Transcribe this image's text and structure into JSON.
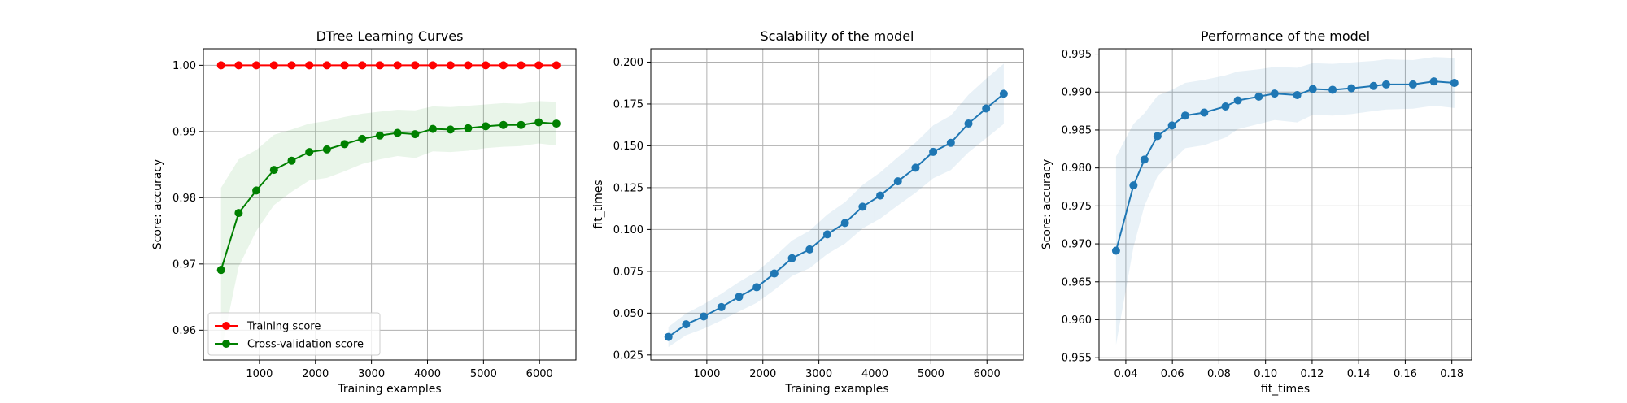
{
  "colors": {
    "training": "#ff0000",
    "cv": "#008000",
    "cv_band": "#2ca02c",
    "tab_blue": "#1f77b4",
    "grid": "#b0b0b0"
  },
  "chart_data": [
    {
      "type": "line",
      "title": "DTree Learning Curves",
      "xlabel": "Training examples",
      "ylabel": "Score: accuracy",
      "xlim": [
        0,
        6650
      ],
      "ylim": [
        0.9555,
        1.0025
      ],
      "xticks": [
        1000,
        2000,
        3000,
        4000,
        5000,
        6000
      ],
      "yticks": [
        0.96,
        0.97,
        0.98,
        0.99,
        1.0
      ],
      "ytick_labels": [
        "0.96",
        "0.97",
        "0.98",
        "0.99",
        "1.00"
      ],
      "grid": true,
      "legend": "lower left",
      "x": [
        315,
        630,
        945,
        1260,
        1575,
        1890,
        2205,
        2520,
        2835,
        3150,
        3465,
        3780,
        4095,
        4410,
        4725,
        5040,
        5355,
        5670,
        5985,
        6300
      ],
      "series": [
        {
          "name": "Training score",
          "color": "#ff0000",
          "values": [
            1.0,
            1.0,
            1.0,
            1.0,
            1.0,
            1.0,
            1.0,
            1.0,
            1.0,
            1.0,
            1.0,
            1.0,
            1.0,
            1.0,
            1.0,
            1.0,
            1.0,
            1.0,
            1.0,
            1.0
          ]
        },
        {
          "name": "Cross-validation score",
          "color": "#008000",
          "values": [
            0.9691,
            0.9777,
            0.9811,
            0.9842,
            0.9856,
            0.9869,
            0.9873,
            0.9881,
            0.9889,
            0.9894,
            0.9898,
            0.9896,
            0.9904,
            0.9903,
            0.9905,
            0.9908,
            0.991,
            0.991,
            0.9914,
            0.9912
          ],
          "band_upper": [
            0.9815,
            0.9858,
            0.9872,
            0.9895,
            0.9903,
            0.9912,
            0.9916,
            0.9922,
            0.9927,
            0.993,
            0.9933,
            0.9932,
            0.9938,
            0.9937,
            0.9939,
            0.9941,
            0.9943,
            0.9942,
            0.9946,
            0.9945
          ],
          "band_lower": [
            0.9567,
            0.9696,
            0.975,
            0.9789,
            0.9809,
            0.9826,
            0.983,
            0.984,
            0.9851,
            0.9858,
            0.9863,
            0.986,
            0.987,
            0.9869,
            0.9871,
            0.9875,
            0.9877,
            0.9878,
            0.9882,
            0.9879
          ]
        }
      ]
    },
    {
      "type": "line",
      "title": "Scalability of the model",
      "xlabel": "Training examples",
      "ylabel": "fit_times",
      "xlim": [
        0,
        6650
      ],
      "ylim": [
        0.022,
        0.208
      ],
      "xticks": [
        1000,
        2000,
        3000,
        4000,
        5000,
        6000
      ],
      "yticks": [
        0.025,
        0.05,
        0.075,
        0.1,
        0.125,
        0.15,
        0.175,
        0.2
      ],
      "ytick_labels": [
        "0.025",
        "0.050",
        "0.075",
        "0.100",
        "0.125",
        "0.150",
        "0.175",
        "0.200"
      ],
      "grid": true,
      "x": [
        315,
        630,
        945,
        1260,
        1575,
        1890,
        2205,
        2520,
        2835,
        3150,
        3465,
        3780,
        4095,
        4410,
        4725,
        5040,
        5355,
        5670,
        5985,
        6300
      ],
      "series": [
        {
          "color": "#1f77b4",
          "values": [
            0.0358,
            0.0433,
            0.048,
            0.0536,
            0.0598,
            0.0655,
            0.0737,
            0.0828,
            0.0881,
            0.0971,
            0.1039,
            0.1136,
            0.1203,
            0.1288,
            0.1369,
            0.1464,
            0.1518,
            0.1633,
            0.1723,
            0.1811
          ],
          "band_upper": [
            0.0418,
            0.0498,
            0.0553,
            0.0616,
            0.0686,
            0.0748,
            0.0836,
            0.0934,
            0.0993,
            0.1089,
            0.1163,
            0.1266,
            0.1341,
            0.1432,
            0.1519,
            0.1622,
            0.1681,
            0.1805,
            0.1901,
            0.1991
          ],
          "band_lower": [
            0.0298,
            0.0368,
            0.0407,
            0.0456,
            0.051,
            0.0562,
            0.0638,
            0.0722,
            0.0769,
            0.0853,
            0.0915,
            0.1006,
            0.1065,
            0.1144,
            0.1219,
            0.1306,
            0.1355,
            0.1461,
            0.1545,
            0.1631
          ]
        }
      ]
    },
    {
      "type": "line",
      "title": "Performance of the model",
      "xlabel": "fit_times",
      "ylabel": "Score: accuracy",
      "xlim": [
        0.0285,
        0.1885
      ],
      "ylim": [
        0.9547,
        0.9957
      ],
      "xticks": [
        0.04,
        0.06,
        0.08,
        0.1,
        0.12,
        0.14,
        0.16,
        0.18
      ],
      "xtick_labels": [
        "0.04",
        "0.06",
        "0.08",
        "0.10",
        "0.12",
        "0.14",
        "0.16",
        "0.18"
      ],
      "yticks": [
        0.955,
        0.96,
        0.965,
        0.97,
        0.975,
        0.98,
        0.985,
        0.99,
        0.995
      ],
      "ytick_labels": [
        "0.955",
        "0.960",
        "0.965",
        "0.970",
        "0.975",
        "0.980",
        "0.985",
        "0.990",
        "0.995"
      ],
      "grid": true,
      "series": [
        {
          "color": "#1f77b4",
          "x": [
            0.0358,
            0.0433,
            0.048,
            0.0536,
            0.0598,
            0.0655,
            0.0737,
            0.0828,
            0.0881,
            0.0971,
            0.1039,
            0.1136,
            0.1203,
            0.1288,
            0.1369,
            0.1464,
            0.1518,
            0.1633,
            0.1723,
            0.1811
          ],
          "values": [
            0.9691,
            0.9777,
            0.9811,
            0.9842,
            0.9856,
            0.9869,
            0.9873,
            0.9881,
            0.9889,
            0.9894,
            0.9898,
            0.9896,
            0.9904,
            0.9903,
            0.9905,
            0.9908,
            0.991,
            0.991,
            0.9914,
            0.9912
          ],
          "band_upper": [
            0.9815,
            0.9858,
            0.9872,
            0.9895,
            0.9903,
            0.9912,
            0.9916,
            0.9922,
            0.9927,
            0.993,
            0.9933,
            0.9932,
            0.9938,
            0.9937,
            0.9939,
            0.9941,
            0.9943,
            0.9942,
            0.9946,
            0.9945
          ],
          "band_lower": [
            0.9567,
            0.9696,
            0.975,
            0.9789,
            0.9809,
            0.9826,
            0.983,
            0.984,
            0.9851,
            0.9858,
            0.9863,
            0.986,
            0.987,
            0.9869,
            0.9871,
            0.9875,
            0.9877,
            0.9878,
            0.9882,
            0.9879
          ]
        }
      ]
    }
  ]
}
